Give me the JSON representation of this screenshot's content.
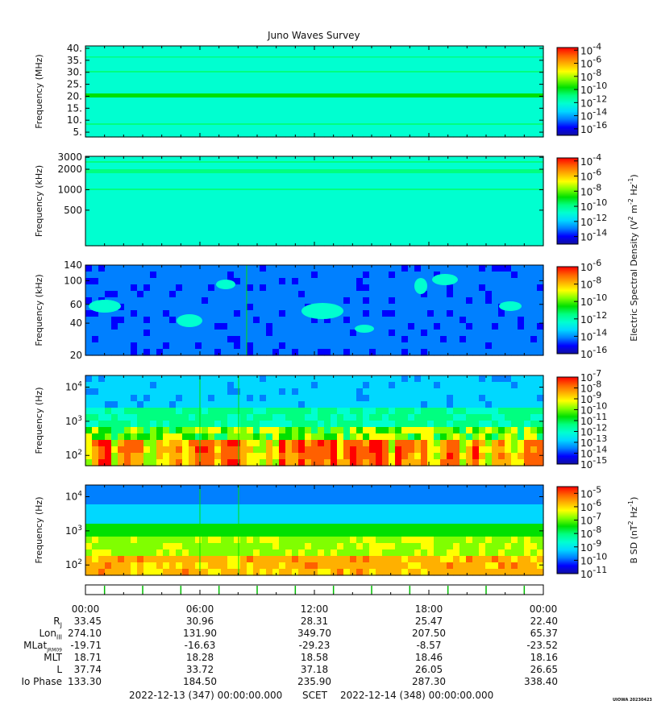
{
  "title": "Juno Waves Survey",
  "credit": "UIOWA 20230423",
  "colors": {
    "frame": "#000000",
    "marker_tick": "#00bb00",
    "colormap": [
      "#1010a0",
      "#0000ff",
      "#0080ff",
      "#00d8ff",
      "#00ffd0",
      "#00ff80",
      "#00e000",
      "#80ff00",
      "#ffff00",
      "#ffb000",
      "#ff6000",
      "#ff0000"
    ]
  },
  "panels": [
    {
      "id": "p1",
      "ylabel": "Frequency (MHz)",
      "yscale": "linear",
      "ylim": [
        3,
        41
      ],
      "yticks": [
        {
          "v": 5,
          "label": "5."
        },
        {
          "v": 10,
          "label": "10."
        },
        {
          "v": 15,
          "label": "15."
        },
        {
          "v": 20,
          "label": "20."
        },
        {
          "v": 25,
          "label": "25."
        },
        {
          "v": 30,
          "label": "30."
        },
        {
          "v": 35,
          "label": "35."
        },
        {
          "v": 40,
          "label": "40."
        }
      ],
      "background_level": 0.36,
      "colorbar": {
        "scale": "log",
        "range_exp": [
          -17,
          -3.6
        ],
        "ticks": [
          {
            "exp": "-4"
          },
          {
            "exp": "-6"
          },
          {
            "exp": "-8"
          },
          {
            "exp": "-10"
          },
          {
            "exp": "-12"
          },
          {
            "exp": "-14"
          },
          {
            "exp": "-16"
          }
        ]
      }
    },
    {
      "id": "p2",
      "ylabel": "Frequency (kHz)",
      "yscale": "log",
      "ylim": [
        150,
        3100
      ],
      "yticks": [
        {
          "v": 500,
          "label": "500"
        },
        {
          "v": 1000,
          "label": "1000"
        },
        {
          "v": 2000,
          "label": "2000"
        },
        {
          "v": 3000,
          "label": "3000"
        }
      ],
      "background_level": 0.36,
      "colorbar": {
        "scale": "log",
        "range_exp": [
          -15,
          -3.6
        ],
        "ticks": [
          {
            "exp": "-4"
          },
          {
            "exp": "-6"
          },
          {
            "exp": "-8"
          },
          {
            "exp": "-10"
          },
          {
            "exp": "-12"
          },
          {
            "exp": "-14"
          }
        ]
      }
    },
    {
      "id": "p3",
      "ylabel": "Frequency (kHz)",
      "yscale": "log",
      "ylim": [
        20,
        140
      ],
      "yticks": [
        {
          "v": 20,
          "label": "20"
        },
        {
          "v": 40,
          "label": "40"
        },
        {
          "v": 60,
          "label": "60"
        },
        {
          "v": 100,
          "label": "100"
        },
        {
          "v": 140,
          "label": "140"
        }
      ],
      "background_level": 0.15,
      "colorbar": {
        "scale": "log",
        "range_exp": [
          -16,
          -6
        ],
        "ticks": [
          {
            "exp": "-6"
          },
          {
            "exp": "-8"
          },
          {
            "exp": "-10"
          },
          {
            "exp": "-12"
          },
          {
            "exp": "-14"
          },
          {
            "exp": "-16"
          }
        ]
      }
    },
    {
      "id": "p4",
      "ylabel": "Frequency (Hz)",
      "yscale": "log",
      "ylim": [
        50,
        22000
      ],
      "yticks": [
        {
          "v": 100,
          "label": "10",
          "sup": "2"
        },
        {
          "v": 1000,
          "label": "10",
          "sup": "3"
        },
        {
          "v": 10000,
          "label": "10",
          "sup": "4"
        }
      ],
      "background_level": 0.2,
      "colorbar": {
        "scale": "log",
        "range_exp": [
          -15,
          -7
        ],
        "ticks": [
          {
            "exp": "-7"
          },
          {
            "exp": "-8"
          },
          {
            "exp": "-9"
          },
          {
            "exp": "-10"
          },
          {
            "exp": "-11"
          },
          {
            "exp": "-12"
          },
          {
            "exp": "-13"
          },
          {
            "exp": "-14"
          },
          {
            "exp": "-15"
          }
        ]
      }
    },
    {
      "id": "p5",
      "ylabel": "Frequency (Hz)",
      "yscale": "log",
      "ylim": [
        50,
        22000
      ],
      "yticks": [
        {
          "v": 100,
          "label": "10",
          "sup": "2"
        },
        {
          "v": 1000,
          "label": "10",
          "sup": "3"
        },
        {
          "v": 10000,
          "label": "10",
          "sup": "4"
        }
      ],
      "background_level": 0.15,
      "colorbar": {
        "scale": "log",
        "range_exp": [
          -11,
          -4.5
        ],
        "ticks": [
          {
            "exp": "-5"
          },
          {
            "exp": "-6"
          },
          {
            "exp": "-7"
          },
          {
            "exp": "-8"
          },
          {
            "exp": "-9"
          },
          {
            "exp": "-10"
          },
          {
            "exp": "-11"
          }
        ]
      }
    }
  ],
  "side_labels": {
    "electric": {
      "base": "Electric Spectral Density (V",
      "sup1": "2",
      "mid": " m",
      "sup2": "-2",
      "mid2": " Hz",
      "sup3": "-1",
      "tail": ")"
    },
    "magnetic": {
      "base": "B SD (nT",
      "sup1": "2",
      "mid": " Hz",
      "sup2": "-1",
      "tail": ")"
    }
  },
  "time_axis": {
    "start": "2022-12-13 00:00",
    "end": "2022-12-14 00:00",
    "major_labels": [
      "00:00",
      "06:00",
      "12:00",
      "18:00",
      "00:00"
    ],
    "minor_step_hours": 1,
    "marker_hours": [
      1,
      3,
      5,
      7,
      9,
      11,
      13,
      15,
      17,
      19,
      21,
      23
    ]
  },
  "ephemeris": [
    {
      "label": "R",
      "sub": "J",
      "values": [
        "33.45",
        "30.96",
        "28.31",
        "25.47",
        "22.40"
      ]
    },
    {
      "label": "Lon",
      "sub": "III",
      "values": [
        "274.10",
        "131.90",
        "349.70",
        "207.50",
        "65.37"
      ]
    },
    {
      "label": "MLat",
      "sub": "JRM09",
      "values": [
        "-19.71",
        "-16.63",
        "-29.23",
        "-8.57",
        "-23.52"
      ]
    },
    {
      "label": "MLT",
      "sub": "",
      "values": [
        "18.71",
        "18.28",
        "18.58",
        "18.46",
        "18.16"
      ]
    },
    {
      "label": "L",
      "sub": "",
      "values": [
        "37.74",
        "33.72",
        "37.18",
        "26.05",
        "26.65"
      ]
    },
    {
      "label": "Io Phase",
      "sub": "",
      "values": [
        "133.30",
        "184.50",
        "235.90",
        "287.30",
        "338.40"
      ]
    }
  ],
  "footer": {
    "start": "2022-12-13 (347) 00:00:00.000",
    "center": "SCET",
    "end": "2022-12-14 (348) 00:00:00.000"
  }
}
